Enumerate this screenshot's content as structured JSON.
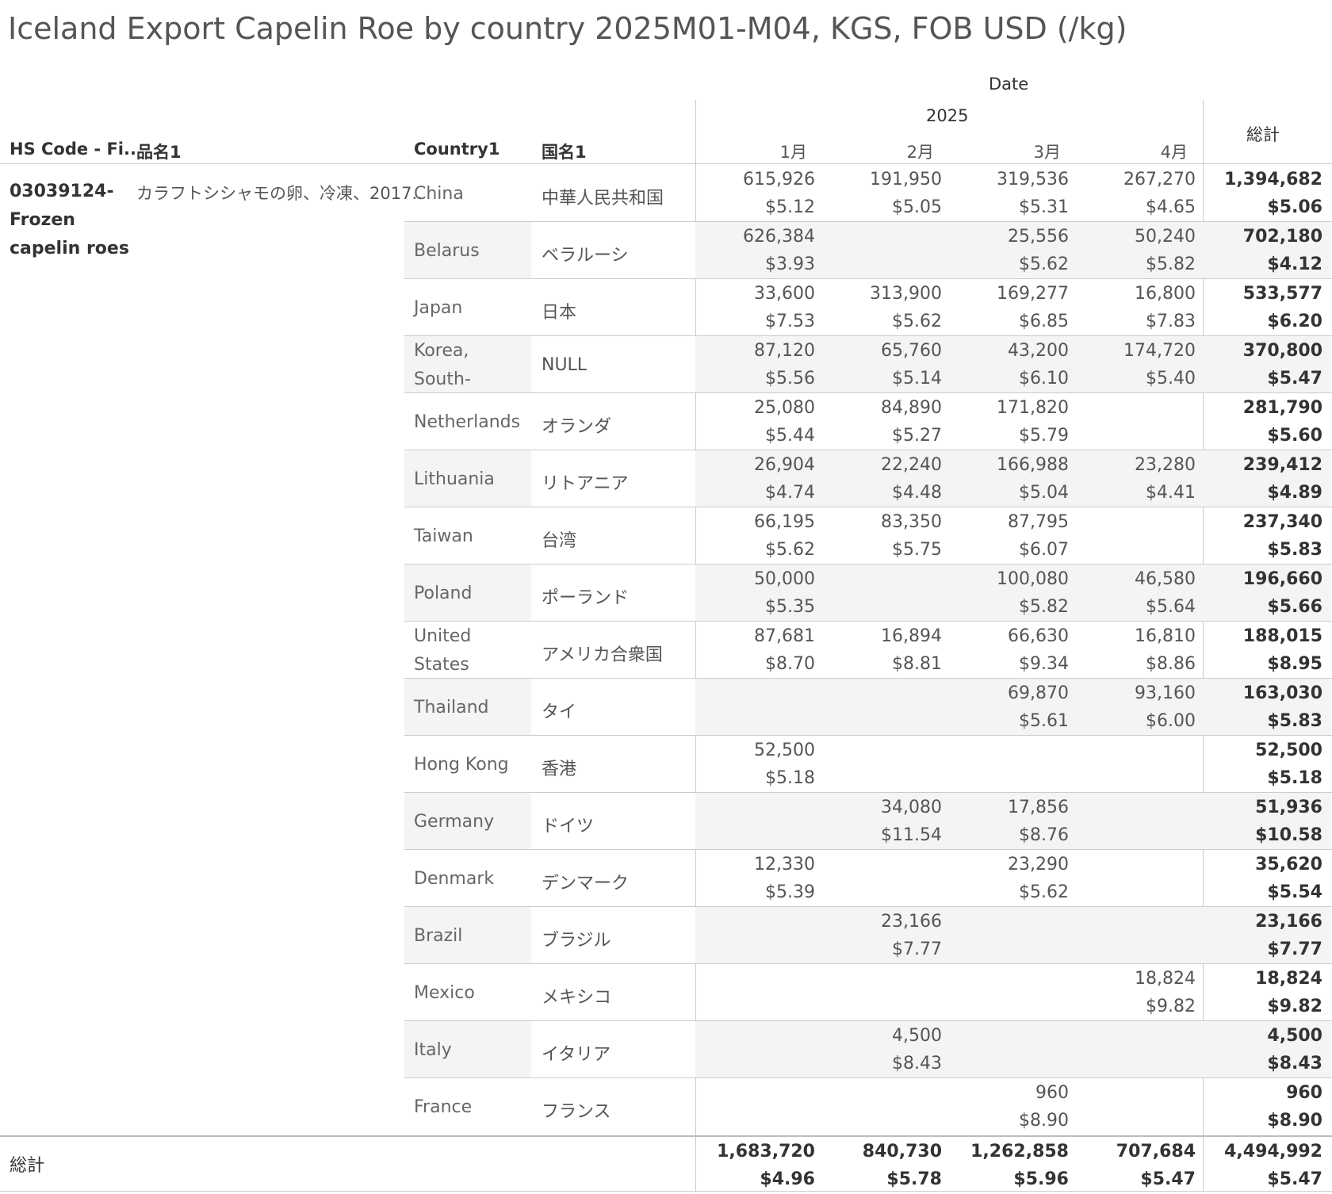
{
  "title": "Iceland Export Capelin Roe by country 2025M01-M04, KGS, FOB USD (/kg)",
  "header": {
    "date": "Date",
    "year": "2025",
    "total": "総計",
    "hs_code": "HS Code - Fi..",
    "product": "品名1",
    "country": "Country1",
    "country_ja": "国名1",
    "months": [
      "1月",
      "2月",
      "3月",
      "4月"
    ]
  },
  "product": {
    "hs_code": "03039124-Frozen capelin roes",
    "name_ja": "カラフトシシャモの卵、冷凍、2017.."
  },
  "chart_data": {
    "type": "table",
    "title": "Iceland Export Capelin Roe by country 2025M01-M04, KGS, FOB USD (/kg)",
    "columns": [
      "1月",
      "2月",
      "3月",
      "4月",
      "総計"
    ],
    "rows": [
      {
        "country": "China",
        "country_ja": "中華人民共和国",
        "kg": [
          "615,926",
          "191,950",
          "319,536",
          "267,270",
          "1,394,682"
        ],
        "usd": [
          "$5.12",
          "$5.05",
          "$5.31",
          "$4.65",
          "$5.06"
        ]
      },
      {
        "country": "Belarus",
        "country_ja": "ベラルーシ",
        "kg": [
          "626,384",
          "",
          "25,556",
          "50,240",
          "702,180"
        ],
        "usd": [
          "$3.93",
          "",
          "$5.62",
          "$5.82",
          "$4.12"
        ]
      },
      {
        "country": "Japan",
        "country_ja": "日本",
        "kg": [
          "33,600",
          "313,900",
          "169,277",
          "16,800",
          "533,577"
        ],
        "usd": [
          "$7.53",
          "$5.62",
          "$6.85",
          "$7.83",
          "$6.20"
        ]
      },
      {
        "country": "Korea, South-",
        "country_ja": "NULL",
        "kg": [
          "87,120",
          "65,760",
          "43,200",
          "174,720",
          "370,800"
        ],
        "usd": [
          "$5.56",
          "$5.14",
          "$6.10",
          "$5.40",
          "$5.47"
        ]
      },
      {
        "country": "Netherlands",
        "country_ja": "オランダ",
        "kg": [
          "25,080",
          "84,890",
          "171,820",
          "",
          "281,790"
        ],
        "usd": [
          "$5.44",
          "$5.27",
          "$5.79",
          "",
          "$5.60"
        ]
      },
      {
        "country": "Lithuania",
        "country_ja": "リトアニア",
        "kg": [
          "26,904",
          "22,240",
          "166,988",
          "23,280",
          "239,412"
        ],
        "usd": [
          "$4.74",
          "$4.48",
          "$5.04",
          "$4.41",
          "$4.89"
        ]
      },
      {
        "country": "Taiwan",
        "country_ja": "台湾",
        "kg": [
          "66,195",
          "83,350",
          "87,795",
          "",
          "237,340"
        ],
        "usd": [
          "$5.62",
          "$5.75",
          "$6.07",
          "",
          "$5.83"
        ]
      },
      {
        "country": "Poland",
        "country_ja": "ポーランド",
        "kg": [
          "50,000",
          "",
          "100,080",
          "46,580",
          "196,660"
        ],
        "usd": [
          "$5.35",
          "",
          "$5.82",
          "$5.64",
          "$5.66"
        ]
      },
      {
        "country": "United States",
        "country_ja": "アメリカ合衆国",
        "kg": [
          "87,681",
          "16,894",
          "66,630",
          "16,810",
          "188,015"
        ],
        "usd": [
          "$8.70",
          "$8.81",
          "$9.34",
          "$8.86",
          "$8.95"
        ]
      },
      {
        "country": "Thailand",
        "country_ja": "タイ",
        "kg": [
          "",
          "",
          "69,870",
          "93,160",
          "163,030"
        ],
        "usd": [
          "",
          "",
          "$5.61",
          "$6.00",
          "$5.83"
        ]
      },
      {
        "country": "Hong Kong",
        "country_ja": "香港",
        "kg": [
          "52,500",
          "",
          "",
          "",
          "52,500"
        ],
        "usd": [
          "$5.18",
          "",
          "",
          "",
          "$5.18"
        ]
      },
      {
        "country": "Germany",
        "country_ja": "ドイツ",
        "kg": [
          "",
          "34,080",
          "17,856",
          "",
          "51,936"
        ],
        "usd": [
          "",
          "$11.54",
          "$8.76",
          "",
          "$10.58"
        ]
      },
      {
        "country": "Denmark",
        "country_ja": "デンマーク",
        "kg": [
          "12,330",
          "",
          "23,290",
          "",
          "35,620"
        ],
        "usd": [
          "$5.39",
          "",
          "$5.62",
          "",
          "$5.54"
        ]
      },
      {
        "country": "Brazil",
        "country_ja": "ブラジル",
        "kg": [
          "",
          "23,166",
          "",
          "",
          "23,166"
        ],
        "usd": [
          "",
          "$7.77",
          "",
          "",
          "$7.77"
        ]
      },
      {
        "country": "Mexico",
        "country_ja": "メキシコ",
        "kg": [
          "",
          "",
          "",
          "18,824",
          "18,824"
        ],
        "usd": [
          "",
          "",
          "",
          "$9.82",
          "$9.82"
        ]
      },
      {
        "country": "Italy",
        "country_ja": "イタリア",
        "kg": [
          "",
          "4,500",
          "",
          "",
          "4,500"
        ],
        "usd": [
          "",
          "$8.43",
          "",
          "",
          "$8.43"
        ]
      },
      {
        "country": "France",
        "country_ja": "フランス",
        "kg": [
          "",
          "",
          "960",
          "",
          "960"
        ],
        "usd": [
          "",
          "",
          "$8.90",
          "",
          "$8.90"
        ]
      }
    ],
    "grand_total": {
      "label": "総計",
      "kg": [
        "1,683,720",
        "840,730",
        "1,262,858",
        "707,684",
        "4,494,992"
      ],
      "usd": [
        "$4.96",
        "$5.78",
        "$5.96",
        "$5.47",
        "$5.47"
      ]
    }
  }
}
